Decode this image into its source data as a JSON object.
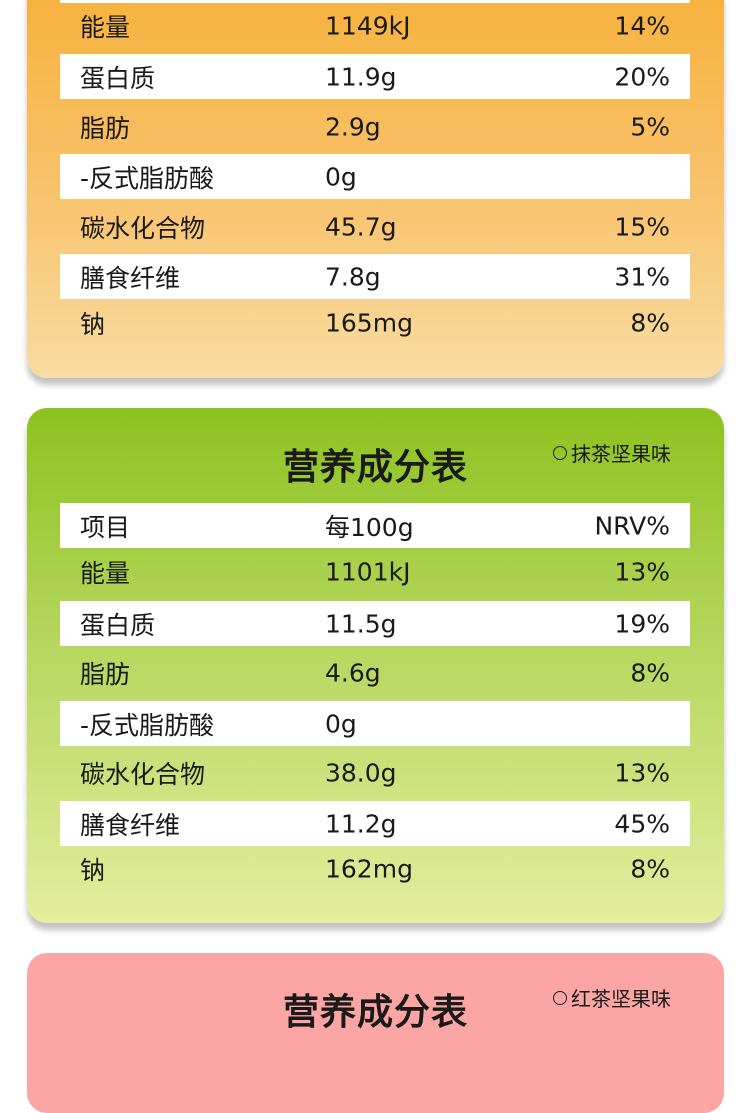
{
  "orange_table": {
    "rows": [
      {
        "name": "能量",
        "per100g": "1149kJ",
        "nrv": "14%"
      },
      {
        "name": "蛋白质",
        "per100g": "11.9g",
        "nrv": "20%"
      },
      {
        "name": "脂肪",
        "per100g": "2.9g",
        "nrv": "5%"
      },
      {
        "name": "-反式脂肪酸",
        "per100g": "0g",
        "nrv": ""
      },
      {
        "name": "碳水化合物",
        "per100g": "45.7g",
        "nrv": "15%"
      },
      {
        "name": "膳食纤维",
        "per100g": "7.8g",
        "nrv": "31%"
      },
      {
        "name": "钠",
        "per100g": "165mg",
        "nrv": "8%"
      }
    ]
  },
  "green_table": {
    "title": "营养成分表",
    "flavor": "抹茶坚果味",
    "header": {
      "name": "项目",
      "per100g": "每100g",
      "nrv": "NRV%"
    },
    "rows": [
      {
        "name": "能量",
        "per100g": "1101kJ",
        "nrv": "13%"
      },
      {
        "name": "蛋白质",
        "per100g": "11.5g",
        "nrv": "19%"
      },
      {
        "name": "脂肪",
        "per100g": "4.6g",
        "nrv": "8%"
      },
      {
        "name": "-反式脂肪酸",
        "per100g": "0g",
        "nrv": ""
      },
      {
        "name": "碳水化合物",
        "per100g": "38.0g",
        "nrv": "13%"
      },
      {
        "name": "膳食纤维",
        "per100g": "11.2g",
        "nrv": "45%"
      },
      {
        "name": "钠",
        "per100g": "162mg",
        "nrv": "8%"
      }
    ]
  },
  "pink_table": {
    "title": "营养成分表",
    "flavor": "红茶坚果味"
  },
  "colors": {
    "orange": "#f7b13a",
    "green": "#8dc21f",
    "pink": "#fba6a4"
  }
}
